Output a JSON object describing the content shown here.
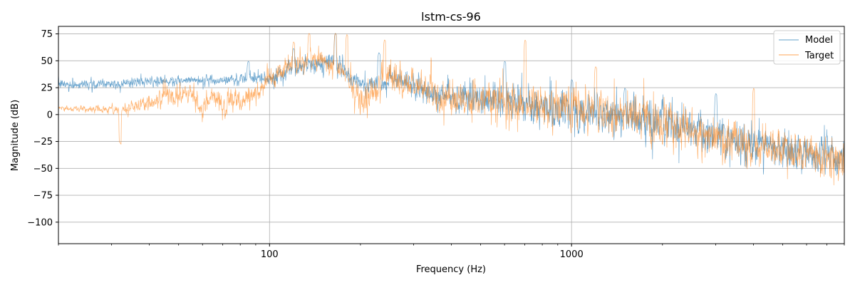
{
  "chart_data": {
    "type": "line",
    "title": "lstm-cs-96",
    "xlabel": "Frequency (Hz)",
    "ylabel": "Magnitude (dB)",
    "x_scale": "log",
    "xlim": [
      20,
      8000
    ],
    "ylim": [
      -120,
      82
    ],
    "x_ticks": [
      100,
      1000
    ],
    "x_tick_labels": [
      "100",
      "1000"
    ],
    "y_ticks": [
      75,
      50,
      25,
      0,
      -25,
      -50,
      -75,
      -100
    ],
    "y_tick_labels": [
      "75",
      "50",
      "25",
      "0",
      "−25",
      "−50",
      "−75",
      "−100"
    ],
    "grid": true,
    "legend_position": "top-right",
    "series": [
      {
        "name": "Model",
        "color": "#1f77b4",
        "envelope": {
          "x": [
            20,
            30,
            50,
            70,
            85,
            100,
            110,
            130,
            150,
            170,
            190,
            210,
            240,
            280,
            320,
            400,
            500,
            600,
            700,
            800,
            1000,
            1300,
            1700,
            2000,
            2500,
            3000,
            3500,
            4000,
            5000,
            6000,
            7000,
            8000
          ],
          "center": [
            28,
            29,
            31,
            32,
            34,
            33,
            38,
            45,
            47,
            46,
            32,
            28,
            30,
            33,
            22,
            18,
            16,
            10,
            9,
            6,
            3,
            0,
            -3,
            -8,
            -15,
            -20,
            -25,
            -28,
            -32,
            -35,
            -38,
            -40
          ],
          "spread": [
            6,
            6,
            6,
            6,
            6,
            8,
            10,
            12,
            12,
            12,
            10,
            12,
            12,
            12,
            16,
            18,
            20,
            22,
            22,
            24,
            24,
            24,
            24,
            24,
            24,
            24,
            24,
            24,
            25,
            25,
            25,
            25
          ],
          "peaks": [
            {
              "x": 85,
              "y": 50
            },
            {
              "x": 120,
              "y": 62
            },
            {
              "x": 165,
              "y": 76
            },
            {
              "x": 230,
              "y": 58
            },
            {
              "x": 600,
              "y": 50
            },
            {
              "x": 1000,
              "y": 33
            },
            {
              "x": 1500,
              "y": 25
            },
            {
              "x": 3000,
              "y": 20
            }
          ]
        }
      },
      {
        "name": "Target",
        "color": "#ff7f0e",
        "envelope": {
          "x": [
            20,
            25,
            30,
            40,
            45,
            50,
            55,
            60,
            65,
            70,
            75,
            80,
            90,
            100,
            110,
            130,
            150,
            170,
            190,
            210,
            240,
            280,
            320,
            400,
            500,
            600,
            700,
            800,
            1000,
            1300,
            1700,
            2000,
            2500,
            3000,
            3500,
            4000,
            5000,
            6000,
            7000,
            8000
          ],
          "center": [
            6,
            5,
            4,
            10,
            18,
            15,
            22,
            5,
            20,
            2,
            18,
            8,
            22,
            32,
            40,
            50,
            50,
            45,
            20,
            15,
            35,
            30,
            25,
            15,
            15,
            12,
            12,
            10,
            8,
            2,
            -3,
            -8,
            -15,
            -20,
            -24,
            -28,
            -33,
            -37,
            -40,
            -42
          ],
          "spread": [
            3,
            4,
            5,
            10,
            12,
            12,
            12,
            12,
            12,
            12,
            12,
            12,
            12,
            14,
            14,
            14,
            14,
            16,
            18,
            18,
            18,
            18,
            20,
            22,
            24,
            26,
            26,
            26,
            26,
            26,
            26,
            26,
            26,
            26,
            26,
            26,
            26,
            26,
            26,
            26
          ],
          "peaks": [
            {
              "x": 32,
              "y": -26
            },
            {
              "x": 120,
              "y": 68
            },
            {
              "x": 135,
              "y": 76
            },
            {
              "x": 165,
              "y": 76
            },
            {
              "x": 180,
              "y": 75
            },
            {
              "x": 240,
              "y": 70
            },
            {
              "x": 700,
              "y": 70
            },
            {
              "x": 1200,
              "y": 45
            },
            {
              "x": 4000,
              "y": 25
            }
          ]
        }
      }
    ]
  }
}
